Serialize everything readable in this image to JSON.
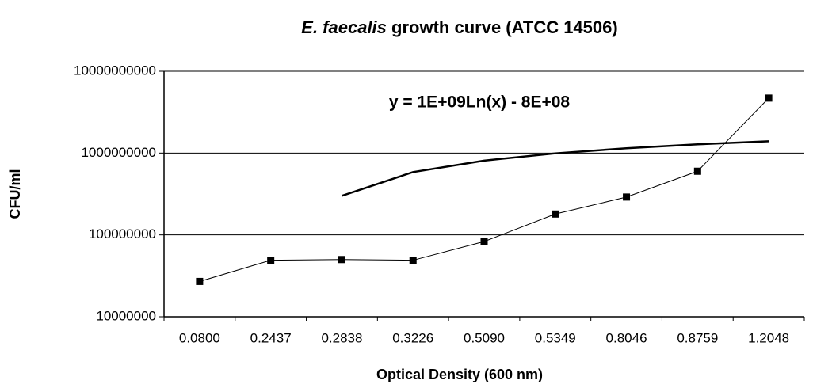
{
  "chart_data": {
    "type": "line",
    "title": {
      "italic": "E. faecalis",
      "rest": "growth curve (ATCC 14506)"
    },
    "annotation": "y = 1E+09Ln(x) - 8E+08",
    "x_label": "Optical Density (600 nm)",
    "y_label": "CFU/ml",
    "categories": [
      "0.0800",
      "0.2437",
      "0.2838",
      "0.3226",
      "0.5090",
      "0.5349",
      "0.8046",
      "0.8759",
      "1.2048"
    ],
    "series": [
      {
        "color": "#000000",
        "values": [
          27000000,
          49000000,
          50000000,
          49000000,
          83000000,
          180000000,
          290000000,
          600000000,
          4700000000
        ]
      }
    ],
    "trendline": {
      "color": "#000000",
      "values": [
        null,
        null,
        300000000,
        586000000,
        809000000,
        992000000,
        1146000000,
        1279000000,
        1397000000
      ]
    },
    "log_y": true,
    "ylim": [
      10000000,
      10000000000
    ],
    "yticks": [
      10000000,
      100000000,
      1000000000,
      10000000000
    ],
    "grid": true
  }
}
